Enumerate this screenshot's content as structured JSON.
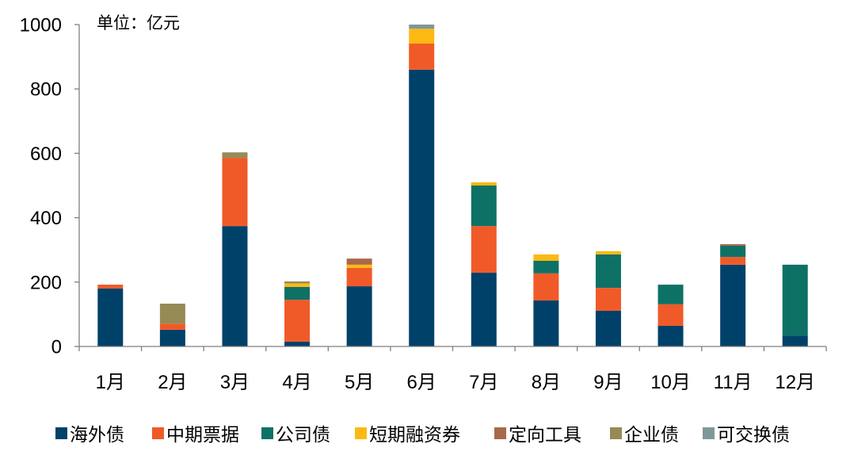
{
  "chart_data": {
    "type": "bar",
    "stacked": true,
    "title": "",
    "annotation": "单位：亿元",
    "xlabel": "",
    "ylabel": "",
    "ylim": [
      0,
      1000
    ],
    "yticks": [
      0,
      200,
      400,
      600,
      800,
      1000
    ],
    "grid": false,
    "legend_position": "bottom",
    "categories": [
      "1月",
      "2月",
      "3月",
      "4月",
      "5月",
      "6月",
      "7月",
      "8月",
      "9月",
      "10月",
      "11月",
      "12月"
    ],
    "series": [
      {
        "name": "海外债",
        "color": "#00416A",
        "values": [
          180,
          52,
          374,
          15,
          187,
          860,
          229,
          143,
          111,
          64,
          254,
          34
        ]
      },
      {
        "name": "中期票据",
        "color": "#F05A28",
        "values": [
          12,
          19,
          212,
          130,
          57,
          81,
          145,
          84,
          71,
          67,
          24,
          0
        ]
      },
      {
        "name": "公司债",
        "color": "#0E7166",
        "values": [
          0,
          0,
          0,
          40,
          0,
          0,
          126,
          39,
          104,
          61,
          35,
          220
        ]
      },
      {
        "name": "短期融资券",
        "color": "#FDB913",
        "values": [
          0,
          0,
          0,
          11,
          10,
          46,
          10,
          20,
          10,
          0,
          0,
          0
        ]
      },
      {
        "name": "定向工具",
        "color": "#A8694A",
        "values": [
          0,
          0,
          0,
          0,
          19,
          0,
          0,
          0,
          0,
          0,
          5,
          0
        ]
      },
      {
        "name": "企业债",
        "color": "#968B57",
        "values": [
          0,
          62,
          17,
          6,
          0,
          0,
          0,
          0,
          0,
          0,
          0,
          0
        ]
      },
      {
        "name": "可交换债",
        "color": "#7E9899",
        "values": [
          0,
          0,
          0,
          0,
          0,
          13,
          0,
          0,
          0,
          0,
          0,
          0
        ]
      }
    ]
  }
}
